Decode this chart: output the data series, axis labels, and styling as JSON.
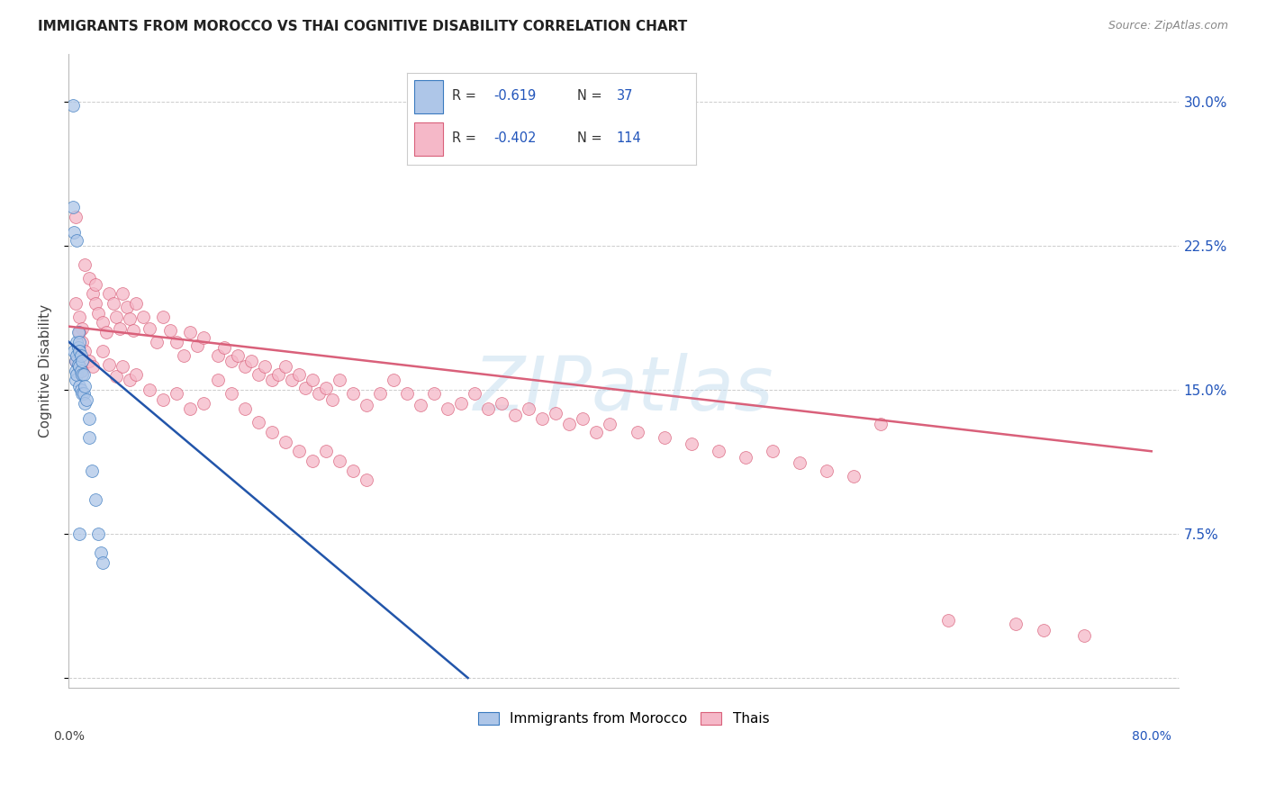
{
  "title": "IMMIGRANTS FROM MOROCCO VS THAI COGNITIVE DISABILITY CORRELATION CHART",
  "source": "Source: ZipAtlas.com",
  "ylabel": "Cognitive Disability",
  "ytick_vals": [
    0.0,
    0.075,
    0.15,
    0.225,
    0.3
  ],
  "ytick_labels": [
    "",
    "7.5%",
    "15.0%",
    "22.5%",
    "30.0%"
  ],
  "xtick_vals": [
    0.0,
    0.1,
    0.2,
    0.3,
    0.4,
    0.5,
    0.6,
    0.7,
    0.8
  ],
  "xlim": [
    0.0,
    0.82
  ],
  "ylim": [
    -0.005,
    0.325
  ],
  "watermark": "ZIPatlas",
  "legend_label1": "Immigrants from Morocco",
  "legend_label2": "Thais",
  "blue_fill": "#aec6e8",
  "blue_edge": "#3a7abf",
  "pink_fill": "#f5b8c8",
  "pink_edge": "#d9607a",
  "blue_line_color": "#2255aa",
  "pink_line_color": "#d9607a",
  "morocco_x": [
    0.003,
    0.004,
    0.005,
    0.005,
    0.005,
    0.006,
    0.006,
    0.006,
    0.007,
    0.007,
    0.007,
    0.008,
    0.008,
    0.008,
    0.008,
    0.009,
    0.009,
    0.009,
    0.01,
    0.01,
    0.01,
    0.011,
    0.011,
    0.012,
    0.012,
    0.013,
    0.015,
    0.015,
    0.017,
    0.02,
    0.022,
    0.024,
    0.025,
    0.003,
    0.004,
    0.006,
    0.008
  ],
  "morocco_y": [
    0.298,
    0.17,
    0.165,
    0.16,
    0.155,
    0.175,
    0.168,
    0.158,
    0.18,
    0.172,
    0.163,
    0.175,
    0.17,
    0.162,
    0.152,
    0.168,
    0.16,
    0.15,
    0.165,
    0.158,
    0.148,
    0.158,
    0.148,
    0.152,
    0.143,
    0.145,
    0.135,
    0.125,
    0.108,
    0.093,
    0.075,
    0.065,
    0.06,
    0.245,
    0.232,
    0.228,
    0.075
  ],
  "thai_x": [
    0.005,
    0.008,
    0.01,
    0.012,
    0.015,
    0.018,
    0.02,
    0.022,
    0.025,
    0.028,
    0.03,
    0.033,
    0.035,
    0.038,
    0.04,
    0.043,
    0.045,
    0.048,
    0.05,
    0.055,
    0.06,
    0.065,
    0.07,
    0.075,
    0.08,
    0.085,
    0.09,
    0.095,
    0.1,
    0.11,
    0.115,
    0.12,
    0.125,
    0.13,
    0.135,
    0.14,
    0.145,
    0.15,
    0.155,
    0.16,
    0.165,
    0.17,
    0.175,
    0.18,
    0.185,
    0.19,
    0.195,
    0.2,
    0.21,
    0.22,
    0.23,
    0.24,
    0.25,
    0.26,
    0.27,
    0.28,
    0.29,
    0.3,
    0.31,
    0.32,
    0.33,
    0.34,
    0.35,
    0.36,
    0.37,
    0.38,
    0.39,
    0.4,
    0.42,
    0.44,
    0.46,
    0.48,
    0.5,
    0.52,
    0.54,
    0.56,
    0.58,
    0.6,
    0.005,
    0.008,
    0.01,
    0.012,
    0.015,
    0.018,
    0.02,
    0.025,
    0.03,
    0.035,
    0.04,
    0.045,
    0.05,
    0.06,
    0.07,
    0.08,
    0.09,
    0.1,
    0.11,
    0.12,
    0.13,
    0.14,
    0.15,
    0.16,
    0.17,
    0.18,
    0.19,
    0.2,
    0.21,
    0.22,
    0.65,
    0.7,
    0.72,
    0.75,
    0.005,
    0.01
  ],
  "thai_y": [
    0.195,
    0.188,
    0.182,
    0.215,
    0.208,
    0.2,
    0.195,
    0.19,
    0.185,
    0.18,
    0.2,
    0.195,
    0.188,
    0.182,
    0.2,
    0.193,
    0.187,
    0.181,
    0.195,
    0.188,
    0.182,
    0.175,
    0.188,
    0.181,
    0.175,
    0.168,
    0.18,
    0.173,
    0.177,
    0.168,
    0.172,
    0.165,
    0.168,
    0.162,
    0.165,
    0.158,
    0.162,
    0.155,
    0.158,
    0.162,
    0.155,
    0.158,
    0.151,
    0.155,
    0.148,
    0.151,
    0.145,
    0.155,
    0.148,
    0.142,
    0.148,
    0.155,
    0.148,
    0.142,
    0.148,
    0.14,
    0.143,
    0.148,
    0.14,
    0.143,
    0.137,
    0.14,
    0.135,
    0.138,
    0.132,
    0.135,
    0.128,
    0.132,
    0.128,
    0.125,
    0.122,
    0.118,
    0.115,
    0.118,
    0.112,
    0.108,
    0.105,
    0.132,
    0.24,
    0.18,
    0.175,
    0.17,
    0.165,
    0.162,
    0.205,
    0.17,
    0.163,
    0.157,
    0.162,
    0.155,
    0.158,
    0.15,
    0.145,
    0.148,
    0.14,
    0.143,
    0.155,
    0.148,
    0.14,
    0.133,
    0.128,
    0.123,
    0.118,
    0.113,
    0.118,
    0.113,
    0.108,
    0.103,
    0.03,
    0.028,
    0.025,
    0.022,
    0.165,
    0.16
  ],
  "blue_line_x": [
    0.0,
    0.295
  ],
  "blue_line_y": [
    0.175,
    0.0
  ],
  "pink_line_x": [
    0.0,
    0.8
  ],
  "pink_line_y": [
    0.183,
    0.118
  ]
}
